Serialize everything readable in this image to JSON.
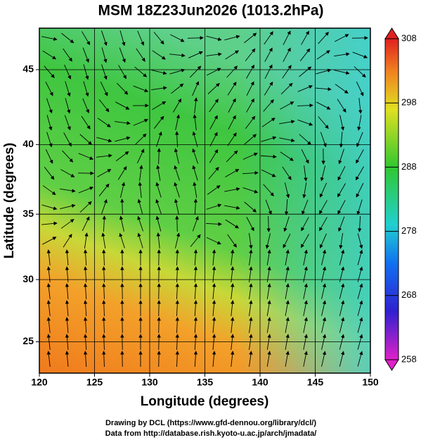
{
  "chart_data": {
    "type": "map",
    "title": "MSM 18Z23Jun2026 (1013.2hPa)",
    "xlabel": "Longitude (degrees)",
    "ylabel": "Latitude  (degrees)",
    "xlim": [
      120,
      150
    ],
    "ylim": [
      22.4,
      47.6
    ],
    "xticks": [
      120,
      125,
      130,
      135,
      140,
      145,
      150
    ],
    "yticks": [
      25,
      30,
      35,
      40,
      45
    ],
    "projection": "mercator",
    "grid": true,
    "colorbar": {
      "lim": [
        258,
        308
      ],
      "ticks": [
        258,
        268,
        278,
        288,
        298,
        308
      ]
    },
    "credits": [
      "Drawing by DCL (https://www.gfd-dennou.org/library/dcl/)",
      "Data from http://database.rish.kyoto-u.ac.jp/arch/jmadata/"
    ]
  }
}
